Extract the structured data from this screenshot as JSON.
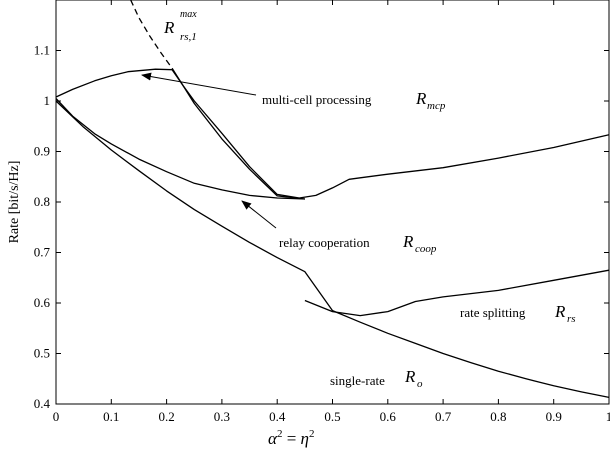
{
  "chart_data": {
    "type": "line",
    "xlabel_parts": {
      "alpha": "α",
      "eq": "=",
      "eta": "η",
      "exp": "2"
    },
    "ylabel": "Rate [bit/s/Hz]",
    "xlim": [
      0,
      1
    ],
    "ylim": [
      0.4,
      1.2
    ],
    "xticks": [
      "0",
      "0.1",
      "0.2",
      "0.3",
      "0.4",
      "0.5",
      "0.6",
      "0.7",
      "0.8",
      "0.9",
      "1"
    ],
    "yticks": [
      "0.4",
      "0.5",
      "0.6",
      "0.7",
      "0.8",
      "0.9",
      "1",
      "1.1"
    ],
    "grid": false,
    "series": [
      {
        "key": "rmax",
        "style": "dashed",
        "x": [
          0.135,
          0.15,
          0.17,
          0.19,
          0.21
        ],
        "y": [
          1.2,
          1.165,
          1.128,
          1.095,
          1.065
        ]
      },
      {
        "key": "rs1",
        "style": "solid",
        "x": [
          0.21,
          0.25,
          0.3,
          0.35,
          0.4,
          0.45
        ],
        "y": [
          1.065,
          0.995,
          0.925,
          0.865,
          0.812,
          0.806
        ]
      },
      {
        "key": "mcp",
        "style": "solid",
        "x": [
          0,
          0.03,
          0.07,
          0.1,
          0.13,
          0.15,
          0.18,
          0.21,
          0.23,
          0.25,
          0.3,
          0.35,
          0.4,
          0.44,
          0.47,
          0.5,
          0.53,
          0.55,
          0.6,
          0.7,
          0.8,
          0.9,
          1
        ],
        "y": [
          1.008,
          1.023,
          1.04,
          1.05,
          1.058,
          1.06,
          1.063,
          1.062,
          1.03,
          1.0,
          0.936,
          0.87,
          0.815,
          0.808,
          0.813,
          0.828,
          0.845,
          0.848,
          0.855,
          0.868,
          0.887,
          0.908,
          0.933
        ]
      },
      {
        "key": "coop",
        "style": "solid",
        "x": [
          0,
          0.03,
          0.07,
          0.1,
          0.15,
          0.2,
          0.25,
          0.3,
          0.35,
          0.4,
          0.45
        ],
        "y": [
          1.005,
          0.97,
          0.935,
          0.915,
          0.885,
          0.86,
          0.837,
          0.824,
          0.813,
          0.808,
          0.806
        ]
      },
      {
        "key": "rs",
        "style": "solid",
        "x": [
          0.45,
          0.5,
          0.55,
          0.6,
          0.65,
          0.7,
          0.8,
          0.9,
          1
        ],
        "y": [
          0.605,
          0.583,
          0.575,
          0.583,
          0.603,
          0.612,
          0.625,
          0.645,
          0.665
        ]
      },
      {
        "key": "ro",
        "style": "solid",
        "x": [
          0,
          0.05,
          0.1,
          0.15,
          0.2,
          0.25,
          0.3,
          0.35,
          0.4,
          0.45,
          0.5,
          0.55,
          0.6,
          0.65,
          0.7,
          0.75,
          0.8,
          0.85,
          0.9,
          0.95,
          1
        ],
        "y": [
          1.0,
          0.948,
          0.903,
          0.862,
          0.822,
          0.785,
          0.752,
          0.72,
          0.69,
          0.662,
          0.585,
          0.562,
          0.54,
          0.52,
          0.5,
          0.482,
          0.465,
          0.45,
          0.436,
          0.424,
          0.413
        ]
      }
    ],
    "annotations": {
      "rmax": {
        "base": "R",
        "sub": "rs,1",
        "sup": "max"
      },
      "mcp": {
        "text": "multi-cell processing",
        "sym": "R",
        "sub": "mcp"
      },
      "coop": {
        "text": "relay cooperation",
        "sym": "R",
        "sub": "coop"
      },
      "rs": {
        "text": "rate splitting",
        "sym": "R",
        "sub": "rs"
      },
      "ro": {
        "text": "single-rate",
        "sym": "R",
        "sub": "o"
      }
    }
  }
}
